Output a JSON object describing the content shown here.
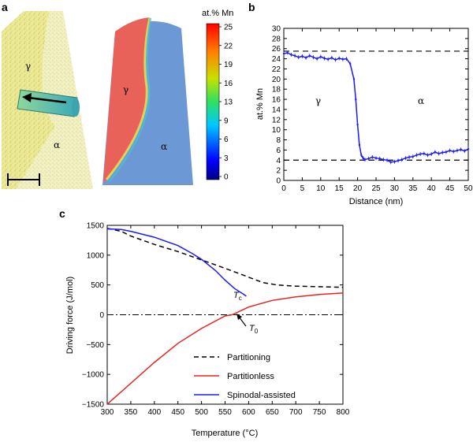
{
  "panels": {
    "a": {
      "label": "a",
      "colorbar_title": "at.% Mn",
      "colorbar_ticks": [
        "25",
        "22",
        "19",
        "16",
        "13",
        "9",
        "6",
        "3",
        "0"
      ],
      "colorbar_range": [
        0,
        25
      ],
      "phase_gamma": "γ",
      "phase_alpha": "α",
      "colors": {
        "atom_map": "#e6e27a",
        "gamma_region": "#e8625a",
        "alpha_region": "#6f98d8",
        "arrow_cylinder": "#3fb8a4"
      }
    },
    "b": {
      "label": "b",
      "phase_gamma": "γ",
      "phase_alpha": "α"
    },
    "c": {
      "label": "c",
      "annotation_tc": "T",
      "annotation_tc_sub": "c",
      "annotation_t0": "T",
      "annotation_t0_sub": "0"
    }
  },
  "chart_data": [
    {
      "type": "line",
      "panel": "b",
      "xlabel": "Distance (nm)",
      "ylabel": "at.% Mn",
      "xlim": [
        0,
        50
      ],
      "ylim": [
        0,
        30
      ],
      "xticks": [
        0,
        5,
        10,
        15,
        20,
        25,
        30,
        35,
        40,
        45,
        50
      ],
      "yticks": [
        0,
        2,
        4,
        6,
        8,
        10,
        12,
        14,
        16,
        18,
        20,
        22,
        24,
        26,
        28,
        30
      ],
      "reference_lines": [
        25.5,
        4
      ],
      "series": [
        {
          "color": "#1a1aff",
          "x": [
            0,
            1,
            2,
            3,
            4,
            5,
            6,
            7,
            8,
            9,
            10,
            11,
            12,
            13,
            14,
            15,
            16,
            17,
            18,
            19,
            19.5,
            20,
            20.5,
            21,
            21.5,
            22,
            23,
            24,
            25,
            26,
            27,
            28,
            29,
            30,
            31,
            32,
            33,
            34,
            35,
            36,
            37,
            38,
            39,
            40,
            41,
            42,
            43,
            44,
            45,
            46,
            47,
            48,
            49,
            50
          ],
          "y": [
            25.0,
            25.2,
            24.8,
            24.6,
            24.3,
            24.5,
            24.2,
            24.6,
            24.3,
            24.0,
            24.4,
            24.1,
            23.9,
            24.2,
            23.8,
            24.1,
            23.9,
            24.0,
            23.0,
            20.0,
            16.0,
            11.0,
            7.0,
            5.0,
            4.4,
            4.1,
            4.3,
            4.6,
            4.4,
            4.3,
            4.1,
            4.0,
            3.6,
            3.7,
            3.9,
            4.1,
            4.4,
            4.6,
            4.7,
            5.0,
            5.2,
            5.3,
            5.0,
            5.2,
            5.6,
            5.3,
            5.5,
            5.6,
            5.9,
            5.7,
            5.9,
            6.1,
            5.8,
            6.2
          ]
        }
      ]
    },
    {
      "type": "line",
      "panel": "c",
      "xlabel": "Temperature (°C)",
      "ylabel": "Driving force (J/mol)",
      "xlim": [
        300,
        800
      ],
      "ylim": [
        -1500,
        1500
      ],
      "xticks": [
        300,
        350,
        400,
        450,
        500,
        550,
        600,
        650,
        700,
        750,
        800
      ],
      "yticks": [
        -1500,
        -1000,
        -500,
        0,
        500,
        1000,
        1500
      ],
      "zero_line": 0,
      "series": [
        {
          "name": "Partitioning",
          "color": "#000000",
          "dash": "dashed",
          "x": [
            300,
            330,
            350,
            400,
            450,
            500,
            550,
            600,
            630,
            660,
            700,
            750,
            800
          ],
          "y": [
            1450,
            1400,
            1320,
            1180,
            1060,
            920,
            780,
            630,
            540,
            500,
            480,
            470,
            460
          ]
        },
        {
          "name": "Partitionless",
          "color": "#e8231b",
          "dash": "solid",
          "x": [
            300,
            350,
            400,
            450,
            500,
            550,
            565,
            600,
            650,
            700,
            750,
            800
          ],
          "y": [
            -1500,
            -1150,
            -800,
            -480,
            -230,
            -20,
            0,
            130,
            240,
            300,
            340,
            365
          ]
        },
        {
          "name": "Spinodal-assisted",
          "color": "#1a1aff",
          "dash": "solid",
          "x": [
            300,
            330,
            350,
            400,
            450,
            480,
            500,
            530,
            550,
            570,
            590,
            595
          ],
          "y": [
            1440,
            1430,
            1400,
            1300,
            1160,
            1030,
            930,
            740,
            580,
            440,
            340,
            310
          ]
        }
      ]
    }
  ]
}
